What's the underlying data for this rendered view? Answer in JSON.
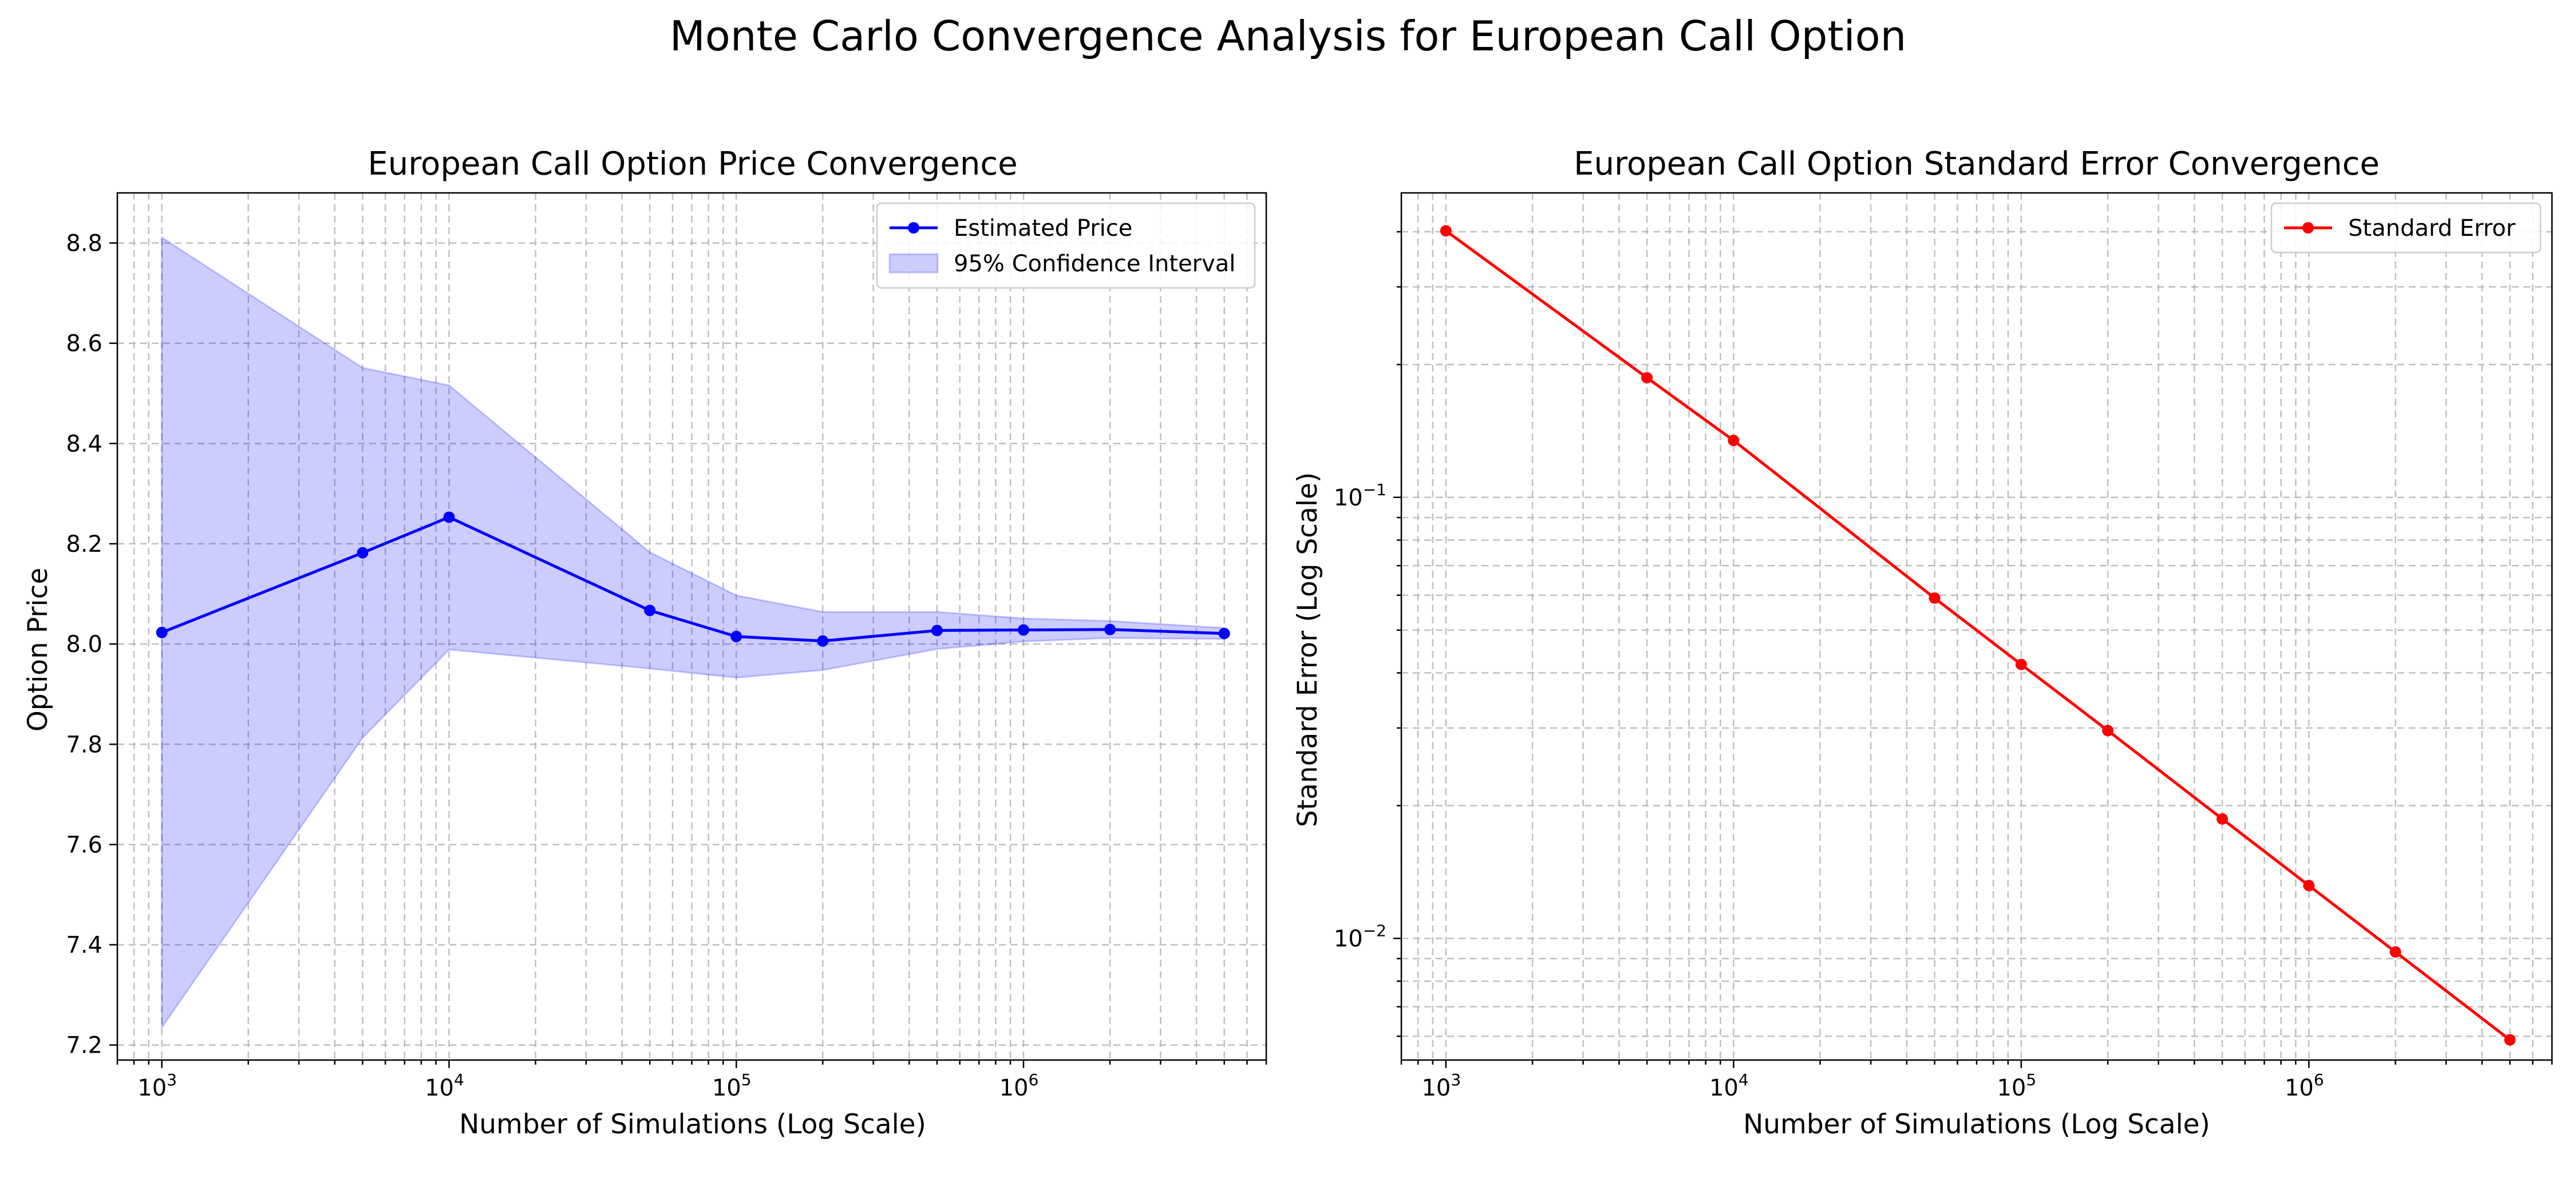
{
  "figure": {
    "suptitle": "Monte Carlo Convergence Analysis for European Call Option"
  },
  "chart_data": [
    {
      "type": "line",
      "title": "European Call Option Price Convergence",
      "xlabel": "Number of Simulations (Log Scale)",
      "ylabel": "Option Price",
      "xscale": "log",
      "yscale": "linear",
      "xlim": [
        700,
        7000000
      ],
      "ylim": [
        7.17,
        8.9
      ],
      "grid": true,
      "legend_position": "upper right",
      "x_ticks": [
        {
          "value": 1000,
          "base": "10",
          "exp": "3"
        },
        {
          "value": 10000,
          "base": "10",
          "exp": "4"
        },
        {
          "value": 100000,
          "base": "10",
          "exp": "5"
        },
        {
          "value": 1000000,
          "base": "10",
          "exp": "6"
        }
      ],
      "y_ticks": [
        {
          "value": 7.2,
          "label": "7.2"
        },
        {
          "value": 7.4,
          "label": "7.4"
        },
        {
          "value": 7.6,
          "label": "7.6"
        },
        {
          "value": 7.8,
          "label": "7.8"
        },
        {
          "value": 8.0,
          "label": "8.0"
        },
        {
          "value": 8.2,
          "label": "8.2"
        },
        {
          "value": 8.4,
          "label": "8.4"
        },
        {
          "value": 8.6,
          "label": "8.6"
        },
        {
          "value": 8.8,
          "label": "8.8"
        }
      ],
      "x": [
        1000,
        5000,
        10000,
        50000,
        100000,
        200000,
        500000,
        1000000,
        2000000,
        5000000
      ],
      "series": [
        {
          "name": "Estimated Price",
          "kind": "line",
          "color": "#0000ff",
          "values": [
            8.023,
            8.182,
            8.253,
            8.067,
            8.015,
            8.006,
            8.027,
            8.028,
            8.029,
            8.021
          ]
        },
        {
          "name": "95% Confidence Interval",
          "kind": "band",
          "color": "#0000ff",
          "lower": [
            7.235,
            7.813,
            7.989,
            7.951,
            7.933,
            7.948,
            7.99,
            8.005,
            8.012,
            8.01
          ],
          "upper": [
            8.811,
            8.551,
            8.516,
            8.183,
            8.097,
            8.064,
            8.064,
            8.051,
            8.046,
            8.032
          ]
        }
      ]
    },
    {
      "type": "line",
      "title": "European Call Option Standard Error Convergence",
      "xlabel": "Number of Simulations (Log Scale)",
      "ylabel": "Standard Error (Log Scale)",
      "xscale": "log",
      "yscale": "log",
      "xlim": [
        700,
        7000000
      ],
      "ylim": [
        0.0053,
        0.49
      ],
      "grid": true,
      "legend_position": "upper right",
      "x_ticks": [
        {
          "value": 1000,
          "base": "10",
          "exp": "3"
        },
        {
          "value": 10000,
          "base": "10",
          "exp": "4"
        },
        {
          "value": 100000,
          "base": "10",
          "exp": "5"
        },
        {
          "value": 1000000,
          "base": "10",
          "exp": "6"
        }
      ],
      "y_ticks": [
        {
          "value": 0.01,
          "base": "10",
          "exp": "−2"
        },
        {
          "value": 0.1,
          "base": "10",
          "exp": "−1"
        }
      ],
      "x": [
        1000,
        5000,
        10000,
        50000,
        100000,
        200000,
        500000,
        1000000,
        2000000,
        5000000
      ],
      "series": [
        {
          "name": "Standard Error",
          "kind": "line",
          "color": "#ff0000",
          "values": [
            0.402,
            0.1867,
            0.1346,
            0.0591,
            0.0418,
            0.0296,
            0.01866,
            0.01318,
            0.00932,
            0.00589
          ]
        }
      ]
    }
  ]
}
